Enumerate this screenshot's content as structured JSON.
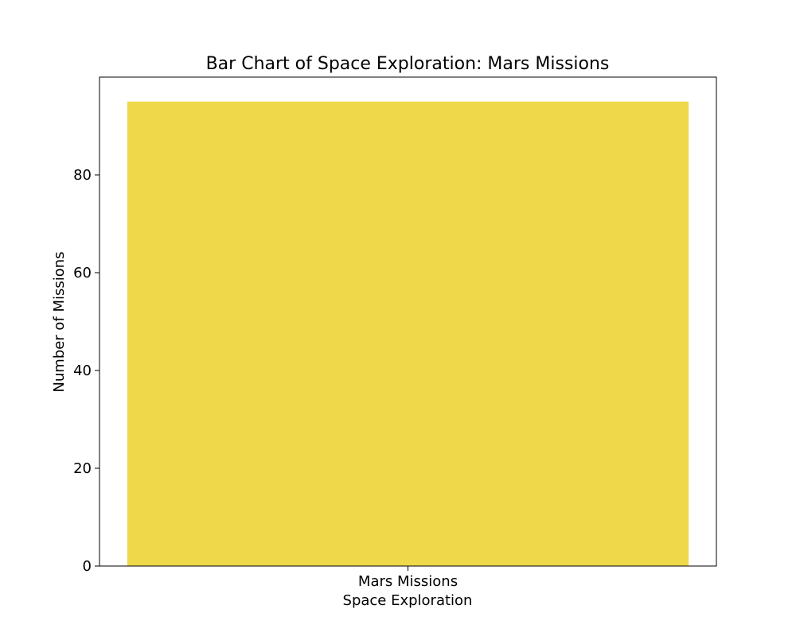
{
  "chart_data": {
    "type": "bar",
    "title": "Bar Chart of Space Exploration: Mars Missions",
    "xlabel": "Space Exploration",
    "ylabel": "Number of Missions",
    "categories": [
      "Mars Missions"
    ],
    "values": [
      95
    ],
    "ylim": [
      0,
      100
    ],
    "yticks": [
      0,
      20,
      40,
      60,
      80
    ],
    "bar_color": "#EDD94A",
    "grid": false,
    "legend": "none"
  }
}
